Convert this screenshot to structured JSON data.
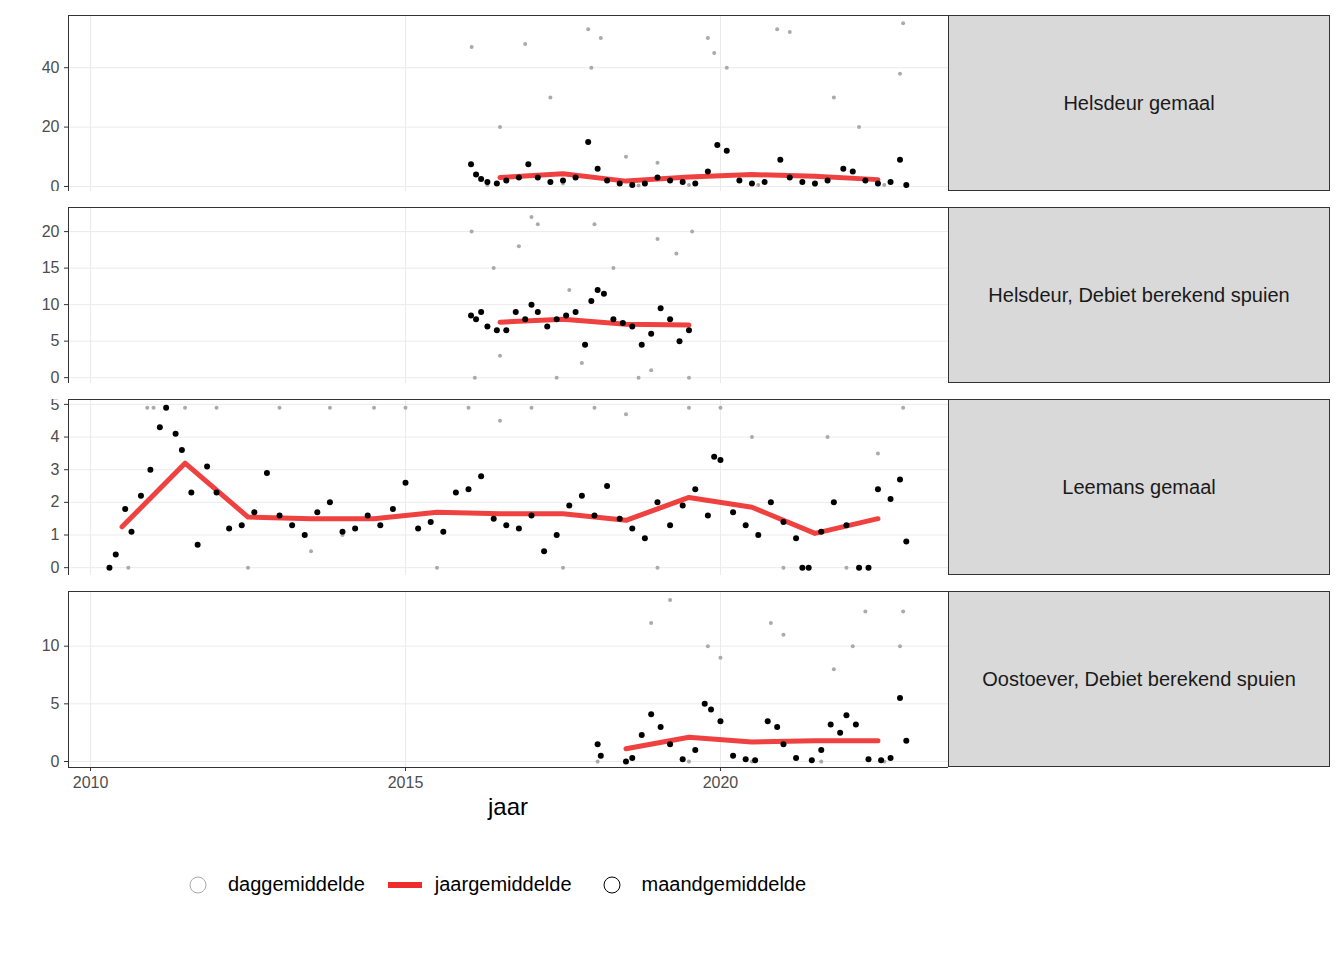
{
  "chart_data": {
    "type": "scatter",
    "xlabel": "jaar",
    "xlim": [
      2009.65,
      2023.62
    ],
    "xticks": [
      2010,
      2015,
      2020
    ],
    "grid": true,
    "legend": "bottom",
    "panels": [
      {
        "title": "Helsdeur gemaal",
        "ylim": [
          -1.7,
          57.6
        ],
        "yticks": [
          0,
          20,
          40
        ],
        "series": [
          {
            "name": "daggemiddelde",
            "color": "#aaaaaa",
            "marker": "point",
            "x": [
              2016.05,
              2016.3,
              2016.5,
              2016.9,
              2017.3,
              2017.5,
              2017.9,
              2017.95,
              2018.1,
              2018.5,
              2018.7,
              2019.0,
              2019.5,
              2019.8,
              2019.9,
              2020.1,
              2020.6,
              2020.9,
              2021.1,
              2021.5,
              2021.8,
              2022.2,
              2022.6,
              2022.85,
              2022.9
            ],
            "values": [
              47,
              0.5,
              20,
              48,
              30,
              1,
              53,
              40,
              50,
              10,
              0.3,
              8,
              0.5,
              50,
              45,
              40,
              0.5,
              53,
              52,
              0.5,
              30,
              20,
              0.5,
              38,
              55
            ]
          },
          {
            "name": "jaargemiddelde",
            "type": "line",
            "color": "#ee2c2c",
            "x": [
              2016.5,
              2017.5,
              2018.5,
              2019.5,
              2020.5,
              2021.5,
              2022.5
            ],
            "values": [
              3.0,
              4.3,
              1.8,
              3.2,
              4.0,
              3.4,
              2.3
            ]
          },
          {
            "name": "maandgemiddelde",
            "color": "#000000",
            "marker": "circle",
            "x": [
              2016.04,
              2016.12,
              2016.2,
              2016.3,
              2016.45,
              2016.6,
              2016.8,
              2016.95,
              2017.1,
              2017.3,
              2017.5,
              2017.7,
              2017.9,
              2018.05,
              2018.2,
              2018.4,
              2018.6,
              2018.8,
              2019.0,
              2019.2,
              2019.4,
              2019.6,
              2019.8,
              2019.95,
              2020.1,
              2020.3,
              2020.5,
              2020.7,
              2020.95,
              2021.1,
              2021.3,
              2021.5,
              2021.7,
              2021.95,
              2022.1,
              2022.3,
              2022.5,
              2022.7,
              2022.85,
              2022.95
            ],
            "values": [
              7.5,
              4,
              2.5,
              1.5,
              1,
              2,
              3,
              7.5,
              3,
              1.5,
              2,
              3,
              15,
              6,
              2,
              1,
              0.5,
              1,
              3,
              2,
              1.5,
              1,
              5,
              14,
              12,
              2,
              1,
              1.5,
              9,
              3,
              1.5,
              1,
              2,
              6,
              5,
              2,
              1,
              1.5,
              9,
              0.5
            ]
          }
        ]
      },
      {
        "title": "Helsdeur, Debiet berekend spuien",
        "ylim": [
          -0.8,
          23.3
        ],
        "yticks": [
          0,
          5,
          10,
          15,
          20
        ],
        "series": [
          {
            "name": "daggemiddelde",
            "color": "#aaaaaa",
            "marker": "point",
            "x": [
              2016.05,
              2016.1,
              2016.4,
              2016.5,
              2016.8,
              2017.0,
              2017.1,
              2017.4,
              2017.6,
              2017.8,
              2018.0,
              2018.3,
              2018.7,
              2018.9,
              2019.0,
              2019.3,
              2019.5,
              2019.55
            ],
            "values": [
              20,
              0,
              15,
              3,
              18,
              22,
              21,
              0,
              12,
              2,
              21,
              15,
              0,
              1,
              19,
              17,
              0,
              20
            ]
          },
          {
            "name": "jaargemiddelde",
            "type": "line",
            "color": "#ee2c2c",
            "x": [
              2016.5,
              2017.5,
              2018.5,
              2019.5
            ],
            "values": [
              7.6,
              8.0,
              7.3,
              7.2
            ]
          },
          {
            "name": "maandgemiddelde",
            "color": "#000000",
            "marker": "circle",
            "x": [
              2016.04,
              2016.12,
              2016.2,
              2016.3,
              2016.45,
              2016.6,
              2016.75,
              2016.9,
              2017.0,
              2017.1,
              2017.25,
              2017.4,
              2017.55,
              2017.7,
              2017.85,
              2017.95,
              2018.05,
              2018.15,
              2018.3,
              2018.45,
              2018.6,
              2018.75,
              2018.9,
              2019.05,
              2019.2,
              2019.35,
              2019.5
            ],
            "values": [
              8.5,
              8,
              9,
              7,
              6.5,
              6.5,
              9,
              8,
              10,
              9,
              7,
              8,
              8.5,
              9,
              4.5,
              10.5,
              12,
              11.5,
              8,
              7.5,
              7,
              4.5,
              6,
              9.5,
              8,
              5,
              6.5
            ]
          }
        ]
      },
      {
        "title": "Leemans gemaal",
        "ylim": [
          -0.24,
          5.15
        ],
        "yticks": [
          0,
          1,
          2,
          3,
          4,
          5
        ],
        "series": [
          {
            "name": "daggemiddelde",
            "color": "#aaaaaa",
            "marker": "point",
            "x": [
              2010.6,
              2010.9,
              2011.0,
              2011.5,
              2012.0,
              2012.5,
              2013.0,
              2013.5,
              2013.8,
              2014.0,
              2014.5,
              2015.0,
              2015.5,
              2016.0,
              2016.5,
              2017.0,
              2017.5,
              2018.0,
              2018.5,
              2019.0,
              2019.5,
              2020.0,
              2020.5,
              2021.0,
              2021.3,
              2021.7,
              2022.0,
              2022.5,
              2022.9
            ],
            "values": [
              0,
              4.9,
              4.9,
              4.9,
              4.9,
              0,
              4.9,
              0.5,
              4.9,
              1.0,
              4.9,
              4.9,
              0,
              4.9,
              4.5,
              4.9,
              0,
              4.9,
              4.7,
              0,
              4.9,
              4.9,
              4.0,
              0,
              0,
              4.0,
              0,
              3.5,
              4.9
            ]
          },
          {
            "name": "jaargemiddelde",
            "type": "line",
            "color": "#ee2c2c",
            "x": [
              2010.5,
              2011.5,
              2012.5,
              2013.5,
              2014.5,
              2015.5,
              2016.5,
              2017.5,
              2018.5,
              2019.5,
              2020.5,
              2021.5,
              2022.5
            ],
            "values": [
              1.25,
              3.2,
              1.55,
              1.5,
              1.5,
              1.7,
              1.65,
              1.65,
              1.45,
              2.15,
              1.85,
              1.05,
              1.5
            ]
          },
          {
            "name": "maandgemiddelde",
            "color": "#000000",
            "marker": "circle",
            "x": [
              2010.3,
              2010.4,
              2010.55,
              2010.65,
              2010.8,
              2010.95,
              2011.1,
              2011.2,
              2011.35,
              2011.45,
              2011.6,
              2011.7,
              2011.85,
              2012.0,
              2012.2,
              2012.4,
              2012.6,
              2012.8,
              2013.0,
              2013.2,
              2013.4,
              2013.6,
              2013.8,
              2014.0,
              2014.2,
              2014.4,
              2014.6,
              2014.8,
              2015.0,
              2015.2,
              2015.4,
              2015.6,
              2015.8,
              2016.0,
              2016.2,
              2016.4,
              2016.6,
              2016.8,
              2017.0,
              2017.2,
              2017.4,
              2017.6,
              2017.8,
              2018.0,
              2018.2,
              2018.4,
              2018.6,
              2018.8,
              2019.0,
              2019.2,
              2019.4,
              2019.6,
              2019.8,
              2019.9,
              2020.0,
              2020.2,
              2020.4,
              2020.6,
              2020.8,
              2021.0,
              2021.2,
              2021.3,
              2021.4,
              2021.6,
              2021.8,
              2022.0,
              2022.2,
              2022.35,
              2022.5,
              2022.7,
              2022.85,
              2022.95
            ],
            "values": [
              0,
              0.4,
              1.8,
              1.1,
              2.2,
              3,
              4.3,
              4.9,
              4.1,
              3.6,
              2.3,
              0.7,
              3.1,
              2.3,
              1.2,
              1.3,
              1.7,
              2.9,
              1.6,
              1.3,
              1.0,
              1.7,
              2.0,
              1.1,
              1.2,
              1.6,
              1.3,
              1.8,
              2.6,
              1.2,
              1.4,
              1.1,
              2.3,
              2.4,
              2.8,
              1.5,
              1.3,
              1.2,
              1.6,
              0.5,
              1.0,
              1.9,
              2.2,
              1.6,
              2.5,
              1.5,
              1.2,
              0.9,
              2.0,
              1.3,
              1.9,
              2.4,
              1.6,
              3.4,
              3.3,
              1.7,
              1.3,
              1.0,
              2.0,
              1.4,
              0.9,
              0,
              0,
              1.1,
              2.0,
              1.3,
              0,
              0,
              2.4,
              2.1,
              2.7,
              0.8
            ]
          }
        ]
      },
      {
        "title": "Oostoever, Debiet berekend spuien",
        "ylim": [
          -0.52,
          14.74
        ],
        "yticks": [
          0,
          5,
          10
        ],
        "series": [
          {
            "name": "daggemiddelde",
            "color": "#aaaaaa",
            "marker": "point",
            "x": [
              2018.05,
              2018.9,
              2019.2,
              2019.5,
              2019.8,
              2020.0,
              2020.5,
              2020.8,
              2021.0,
              2021.6,
              2021.8,
              2022.1,
              2022.3,
              2022.6,
              2022.85,
              2022.9
            ],
            "values": [
              0,
              12,
              14,
              0,
              10,
              9,
              0,
              12,
              11,
              0,
              8,
              10,
              13,
              0,
              10,
              13
            ]
          },
          {
            "name": "jaargemiddelde",
            "type": "line",
            "color": "#ee2c2c",
            "x": [
              2018.5,
              2019.5,
              2020.5,
              2021.5,
              2022.5
            ],
            "values": [
              1.1,
              2.1,
              1.7,
              1.8,
              1.8
            ]
          },
          {
            "name": "maandgemiddelde",
            "color": "#000000",
            "marker": "circle",
            "x": [
              2018.05,
              2018.1,
              2018.5,
              2018.6,
              2018.75,
              2018.9,
              2019.05,
              2019.2,
              2019.4,
              2019.6,
              2019.75,
              2019.85,
              2020.0,
              2020.2,
              2020.4,
              2020.55,
              2020.75,
              2020.9,
              2021.0,
              2021.2,
              2021.45,
              2021.6,
              2021.75,
              2021.9,
              2022.0,
              2022.15,
              2022.35,
              2022.55,
              2022.7,
              2022.85,
              2022.95
            ],
            "values": [
              1.5,
              0.5,
              0,
              0.3,
              2.3,
              4.1,
              3,
              1.5,
              0.2,
              1.0,
              5,
              4.5,
              3.5,
              0.5,
              0.2,
              0.1,
              3.5,
              3,
              1.5,
              0.3,
              0.1,
              1.0,
              3.2,
              2.5,
              4,
              3.2,
              0.2,
              0.1,
              0.3,
              5.5,
              1.8
            ]
          }
        ]
      }
    ]
  }
}
